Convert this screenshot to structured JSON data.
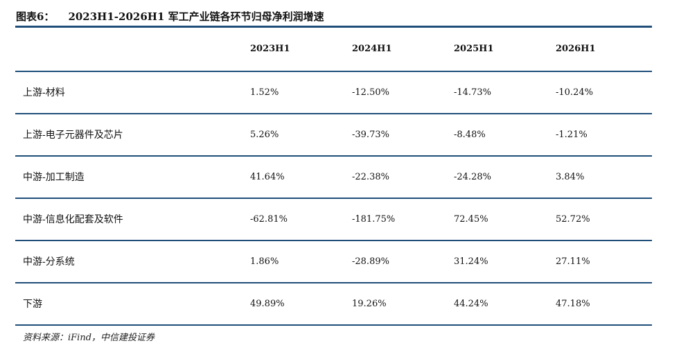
{
  "figure": {
    "label": "图表6：",
    "title": "2023H1-2026H1 军工产业链各环节归母净利润增速"
  },
  "table": {
    "headers": [
      "",
      "2023H1",
      "2024H1",
      "2025H1",
      "2026H1"
    ],
    "rows": [
      {
        "name": "上游-材料",
        "values": [
          "1.52%",
          "-12.50%",
          "-14.73%",
          "-10.24%"
        ]
      },
      {
        "name": "上游-电子元器件及芯片",
        "values": [
          "5.26%",
          "-39.73%",
          "-8.48%",
          "-1.21%"
        ]
      },
      {
        "name": "中游-加工制造",
        "values": [
          "41.64%",
          "-22.38%",
          "-24.28%",
          "3.84%"
        ]
      },
      {
        "name": "中游-信息化配套及软件",
        "values": [
          "-62.81%",
          "-181.75%",
          "72.45%",
          "52.72%"
        ]
      },
      {
        "name": "中游-分系统",
        "values": [
          "1.86%",
          "-28.89%",
          "31.24%",
          "27.11%"
        ]
      },
      {
        "name": "下游",
        "values": [
          "49.89%",
          "19.26%",
          "44.24%",
          "47.18%"
        ]
      }
    ]
  },
  "source": "资料来源：iFind，中信建投证券",
  "colors": {
    "rule": "#1f4e79"
  }
}
